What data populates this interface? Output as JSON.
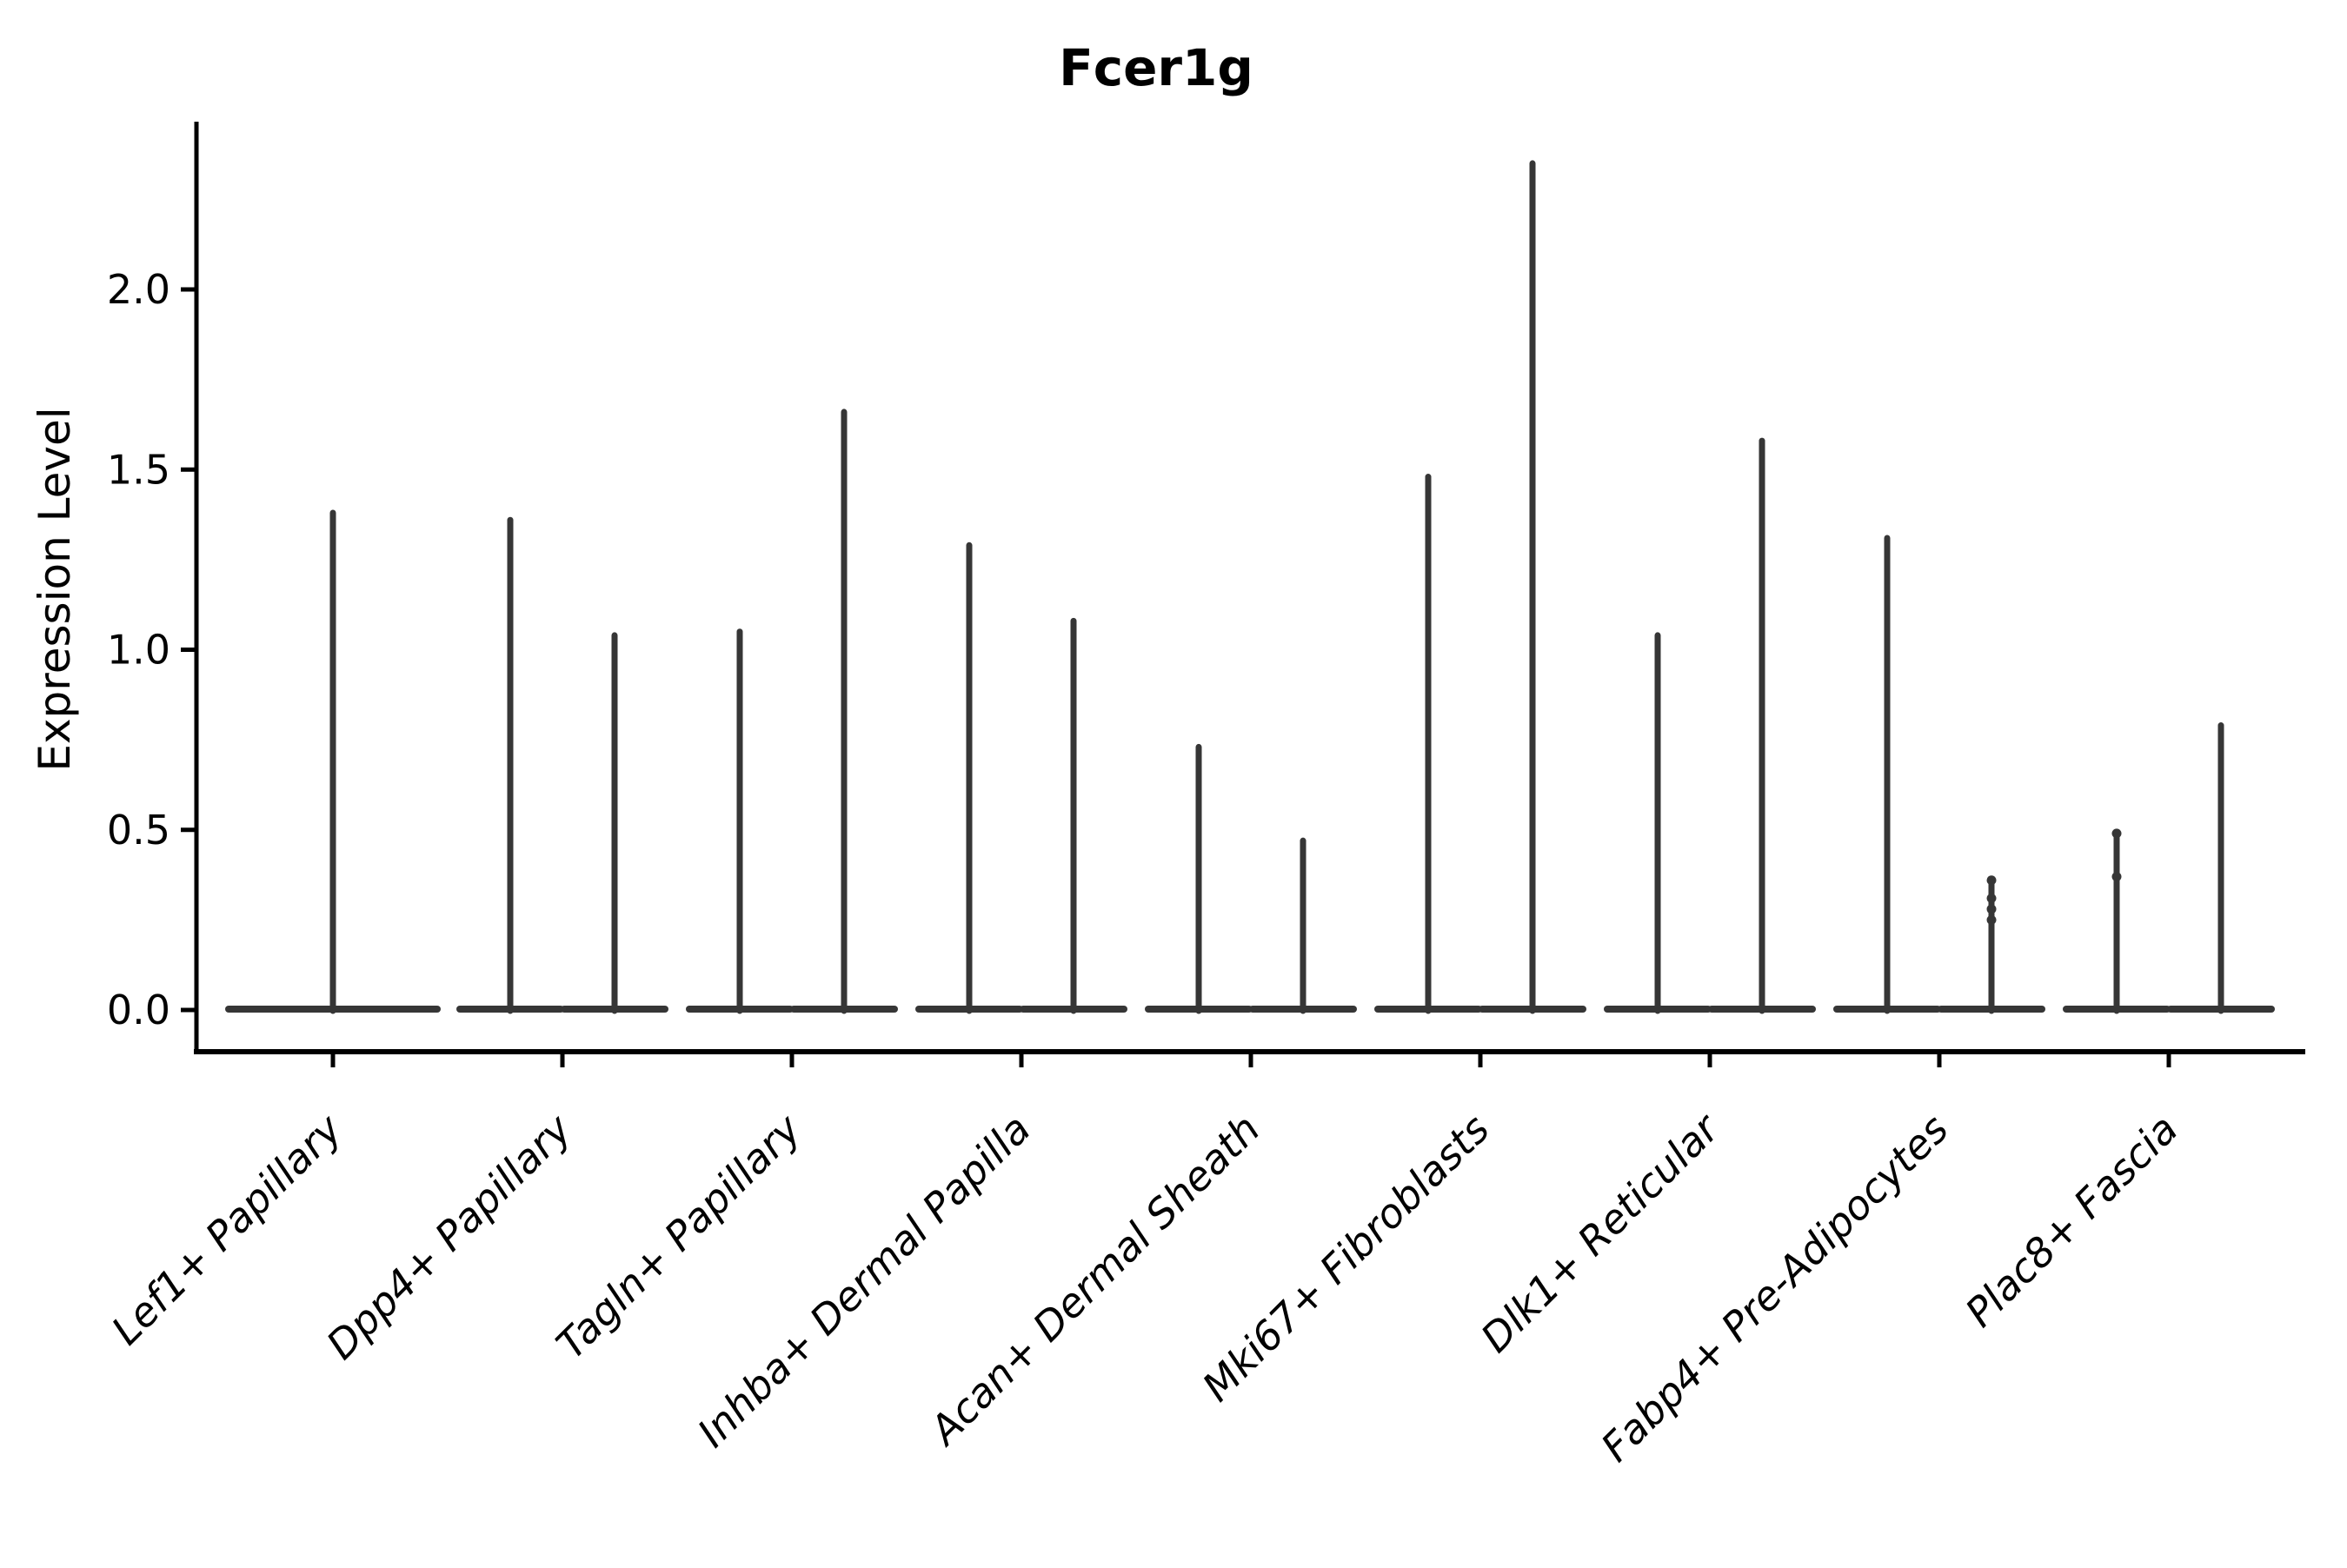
{
  "header": {
    "title": "Fcer1g"
  },
  "colors": {
    "background": "#ffffff",
    "axis": "#000000",
    "text": "#000000",
    "violin": "#363636"
  },
  "chart_data": {
    "type": "violin",
    "title": "Fcer1g",
    "xlabel": "",
    "ylabel": "Expression Level",
    "ylim": [
      -0.12,
      2.47
    ],
    "yticks": [
      {
        "value": 0.0,
        "label": "0.0"
      },
      {
        "value": 0.5,
        "label": "0.5"
      },
      {
        "value": 1.0,
        "label": "1.0"
      },
      {
        "value": 1.5,
        "label": "1.5"
      },
      {
        "value": 2.0,
        "label": "2.0"
      }
    ],
    "grid": false,
    "legend": "none",
    "xtick_rotation_deg": 45,
    "description": "Violin plot of Fcer1g expression; each violin collapses to a flat line at 0 with a thin vertical spike reaching the maximum expression value. Most categories contain two side-by-side violins; the first category has a single full-width violin.",
    "categories": [
      "Lef1+ Papillary",
      "Dpp4+ Papillary",
      "Tagln+ Papillary",
      "Inhba+ Dermal Papilla",
      "Acan+ Dermal Sheath",
      "Mki67+ Fibroblasts",
      "Dlk1+ Reticular",
      "Fabp4+ Pre-Adipocytes",
      "Plac8+ Fascia"
    ],
    "violins": [
      {
        "category": "Lef1+ Papillary",
        "spikes": [
          {
            "offset": 0,
            "half_width": 120,
            "max": 1.38,
            "dots": []
          }
        ]
      },
      {
        "category": "Dpp4+ Papillary",
        "spikes": [
          {
            "offset": -60,
            "half_width": 58,
            "max": 1.36,
            "dots": []
          },
          {
            "offset": 60,
            "half_width": 58,
            "max": 1.04,
            "dots": []
          }
        ]
      },
      {
        "category": "Tagln+ Papillary",
        "spikes": [
          {
            "offset": -60,
            "half_width": 58,
            "max": 1.05,
            "dots": []
          },
          {
            "offset": 60,
            "half_width": 58,
            "max": 1.66,
            "dots": []
          }
        ]
      },
      {
        "category": "Inhba+ Dermal Papilla",
        "spikes": [
          {
            "offset": -60,
            "half_width": 58,
            "max": 1.29,
            "dots": []
          },
          {
            "offset": 60,
            "half_width": 58,
            "max": 1.08,
            "dots": []
          }
        ]
      },
      {
        "category": "Acan+ Dermal Sheath",
        "spikes": [
          {
            "offset": -60,
            "half_width": 58,
            "max": 0.73,
            "dots": []
          },
          {
            "offset": 60,
            "half_width": 58,
            "max": 0.47,
            "dots": []
          }
        ]
      },
      {
        "category": "Mki67+ Fibroblasts",
        "spikes": [
          {
            "offset": -60,
            "half_width": 58,
            "max": 1.48,
            "dots": []
          },
          {
            "offset": 60,
            "half_width": 58,
            "max": 2.35,
            "dots": []
          }
        ]
      },
      {
        "category": "Dlk1+ Reticular",
        "spikes": [
          {
            "offset": -60,
            "half_width": 58,
            "max": 1.04,
            "dots": []
          },
          {
            "offset": 60,
            "half_width": 58,
            "max": 1.58,
            "dots": []
          }
        ]
      },
      {
        "category": "Fabp4+ Pre-Adipocytes",
        "spikes": [
          {
            "offset": -60,
            "half_width": 58,
            "max": 1.31,
            "dots": []
          },
          {
            "offset": 60,
            "half_width": 58,
            "max": 0.36,
            "dots": [
              0.36,
              0.31,
              0.28,
              0.25
            ]
          }
        ]
      },
      {
        "category": "Plac8+ Fascia",
        "spikes": [
          {
            "offset": -60,
            "half_width": 58,
            "max": 0.49,
            "dots": [
              0.49,
              0.37
            ]
          },
          {
            "offset": 60,
            "half_width": 58,
            "max": 0.79,
            "dots": []
          }
        ]
      }
    ]
  }
}
